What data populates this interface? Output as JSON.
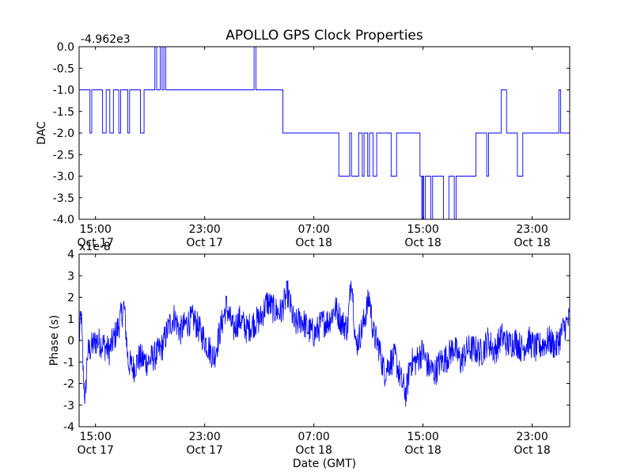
{
  "figure_title": "APOLLO GPS Clock Properties",
  "colors": {
    "line": "#0000ff",
    "axes": "#000000",
    "background": "#ffffff"
  },
  "chart_data": [
    {
      "type": "line",
      "title": "APOLLO GPS Clock Properties",
      "ylabel": "DAC",
      "xlabel": "",
      "offset_label": "-4.962e3",
      "ylim": [
        -4.0,
        0.0
      ],
      "xlim_hours": [
        0,
        27.2
      ],
      "yticks": [
        "0.0",
        "-0.5",
        "-1.0",
        "-1.5",
        "-2.0",
        "-2.5",
        "-3.0",
        "-3.5",
        "-4.0"
      ],
      "xticks": [
        {
          "time": "15:00",
          "date": "Oct 17"
        },
        {
          "time": "23:00",
          "date": "Oct 17"
        },
        {
          "time": "07:00",
          "date": "Oct 18"
        },
        {
          "time": "15:00",
          "date": "Oct 18"
        },
        {
          "time": "23:00",
          "date": "Oct 18"
        }
      ],
      "series": [
        {
          "name": "DAC",
          "points": [
            [
              0.0,
              -1.0
            ],
            [
              0.5,
              -1.0
            ],
            [
              0.6,
              -2.0
            ],
            [
              0.7,
              -1.0
            ],
            [
              1.2,
              -1.0
            ],
            [
              1.3,
              -2.0
            ],
            [
              1.5,
              -1.0
            ],
            [
              1.7,
              -2.0
            ],
            [
              1.9,
              -1.0
            ],
            [
              2.2,
              -2.0
            ],
            [
              2.3,
              -1.0
            ],
            [
              2.6,
              -1.0
            ],
            [
              2.7,
              -2.0
            ],
            [
              2.8,
              -1.0
            ],
            [
              3.3,
              -1.0
            ],
            [
              3.4,
              -2.0
            ],
            [
              3.6,
              -1.0
            ],
            [
              4.1,
              -1.0
            ],
            [
              4.2,
              0.0
            ],
            [
              4.3,
              -1.0
            ],
            [
              4.5,
              0.0
            ],
            [
              4.6,
              -1.0
            ],
            [
              4.7,
              0.0
            ],
            [
              4.8,
              -1.0
            ],
            [
              9.6,
              -1.0
            ],
            [
              9.7,
              0.0
            ],
            [
              9.8,
              -1.0
            ],
            [
              11.0,
              -1.0
            ],
            [
              11.3,
              -2.0
            ],
            [
              14.3,
              -2.0
            ],
            [
              14.4,
              -3.0
            ],
            [
              14.9,
              -3.0
            ],
            [
              15.0,
              -2.0
            ],
            [
              15.1,
              -3.0
            ],
            [
              15.4,
              -3.0
            ],
            [
              15.5,
              -2.0
            ],
            [
              15.7,
              -3.0
            ],
            [
              15.8,
              -2.0
            ],
            [
              16.0,
              -3.0
            ],
            [
              16.1,
              -2.0
            ],
            [
              16.3,
              -3.0
            ],
            [
              16.4,
              -3.0
            ],
            [
              16.5,
              -2.0
            ],
            [
              17.2,
              -2.0
            ],
            [
              17.3,
              -3.0
            ],
            [
              17.5,
              -3.0
            ],
            [
              17.6,
              -2.0
            ],
            [
              18.8,
              -2.0
            ],
            [
              18.9,
              -3.0
            ],
            [
              19.0,
              -4.0
            ],
            [
              19.05,
              -3.0
            ],
            [
              19.1,
              -4.0
            ],
            [
              19.2,
              -3.0
            ],
            [
              19.4,
              -3.0
            ],
            [
              19.5,
              -4.0
            ],
            [
              19.6,
              -3.0
            ],
            [
              20.1,
              -3.0
            ],
            [
              20.2,
              -4.0
            ],
            [
              20.4,
              -4.0
            ],
            [
              20.5,
              -3.0
            ],
            [
              20.7,
              -3.0
            ],
            [
              20.8,
              -4.0
            ],
            [
              20.9,
              -3.0
            ],
            [
              21.9,
              -3.0
            ],
            [
              22.0,
              -2.0
            ],
            [
              22.5,
              -2.0
            ],
            [
              22.6,
              -3.0
            ],
            [
              22.7,
              -2.0
            ],
            [
              23.3,
              -2.0
            ],
            [
              23.4,
              -1.0
            ],
            [
              23.6,
              -1.0
            ],
            [
              23.7,
              -2.0
            ],
            [
              24.2,
              -2.0
            ],
            [
              24.3,
              -3.0
            ],
            [
              24.5,
              -3.0
            ],
            [
              24.6,
              -2.0
            ],
            [
              26.5,
              -2.0
            ],
            [
              26.6,
              -1.0
            ],
            [
              26.7,
              -2.0
            ],
            [
              27.2,
              -2.0
            ]
          ]
        }
      ]
    },
    {
      "type": "line",
      "title": "",
      "ylabel": "Phase (s)",
      "xlabel": "Date (GMT)",
      "offset_label": "x1e-8",
      "ylim": [
        -4,
        4
      ],
      "xlim_hours": [
        0,
        27.2
      ],
      "yticks": [
        "4",
        "3",
        "2",
        "1",
        "0",
        "-1",
        "-2",
        "-3",
        "-4"
      ],
      "xticks": [
        {
          "time": "15:00",
          "date": "Oct 17"
        },
        {
          "time": "23:00",
          "date": "Oct 17"
        },
        {
          "time": "07:00",
          "date": "Oct 18"
        },
        {
          "time": "15:00",
          "date": "Oct 18"
        },
        {
          "time": "23:00",
          "date": "Oct 18"
        }
      ],
      "series": [
        {
          "name": "Phase",
          "points": [
            [
              0.0,
              0.0
            ],
            [
              0.15,
              1.3
            ],
            [
              0.3,
              -1.5
            ],
            [
              0.45,
              -2.9
            ],
            [
              0.6,
              -0.6
            ],
            [
              0.9,
              -0.3
            ],
            [
              1.3,
              0.0
            ],
            [
              1.8,
              -0.2
            ],
            [
              2.2,
              -0.5
            ],
            [
              2.8,
              0.5
            ],
            [
              3.3,
              1.6
            ],
            [
              3.6,
              -1.0
            ],
            [
              4.0,
              -1.3
            ],
            [
              4.4,
              -0.8
            ],
            [
              5.0,
              -1.0
            ],
            [
              5.6,
              -0.7
            ],
            [
              6.1,
              -0.3
            ],
            [
              6.6,
              0.7
            ],
            [
              7.0,
              1.1
            ],
            [
              7.4,
              0.4
            ],
            [
              7.9,
              0.8
            ],
            [
              8.4,
              1.0
            ],
            [
              8.9,
              0.4
            ],
            [
              9.4,
              -0.2
            ],
            [
              9.9,
              -0.8
            ],
            [
              10.4,
              0.6
            ],
            [
              10.8,
              1.6
            ],
            [
              11.3,
              0.5
            ],
            [
              11.8,
              1.0
            ],
            [
              12.3,
              0.5
            ],
            [
              12.8,
              0.8
            ],
            [
              13.3,
              1.0
            ],
            [
              13.8,
              1.8
            ],
            [
              14.3,
              1.4
            ],
            [
              14.8,
              1.3
            ],
            [
              15.3,
              2.2
            ],
            [
              15.8,
              0.7
            ],
            [
              16.3,
              1.0
            ],
            [
              16.8,
              0.5
            ],
            [
              17.3,
              0.3
            ],
            [
              17.8,
              0.8
            ],
            [
              18.3,
              0.9
            ],
            [
              18.8,
              1.5
            ],
            [
              19.3,
              0.8
            ],
            [
              19.7,
              0.6
            ],
            [
              20.0,
              3.1
            ],
            [
              20.3,
              -0.3
            ],
            [
              20.8,
              0.6
            ],
            [
              21.3,
              2.0
            ],
            [
              21.6,
              0.3
            ],
            [
              22.0,
              -0.3
            ],
            [
              22.4,
              -1.5
            ],
            [
              22.8,
              -1.0
            ],
            [
              23.2,
              -0.8
            ],
            [
              23.6,
              -1.8
            ],
            [
              24.0,
              -2.5
            ],
            [
              24.3,
              -1.0
            ],
            [
              24.7,
              -1.0
            ],
            [
              25.2,
              -0.5
            ],
            [
              25.6,
              -1.2
            ],
            [
              26.1,
              -1.5
            ],
            [
              26.5,
              -1.0
            ],
            [
              27.0,
              -0.8
            ],
            [
              27.5,
              -0.3
            ],
            [
              28.0,
              -1.0
            ],
            [
              28.5,
              -0.4
            ],
            [
              29.0,
              -0.4
            ],
            [
              29.5,
              -0.6
            ],
            [
              30.0,
              0.0
            ],
            [
              30.5,
              -0.5
            ],
            [
              31.0,
              0.2
            ],
            [
              31.5,
              -0.2
            ],
            [
              32.0,
              0.0
            ],
            [
              32.5,
              -0.4
            ],
            [
              33.0,
              0.0
            ],
            [
              33.5,
              -0.4
            ],
            [
              34.0,
              -0.2
            ],
            [
              34.5,
              0.0
            ],
            [
              35.0,
              -0.3
            ],
            [
              35.5,
              0.5
            ],
            [
              36.0,
              1.0
            ]
          ]
        }
      ]
    }
  ]
}
